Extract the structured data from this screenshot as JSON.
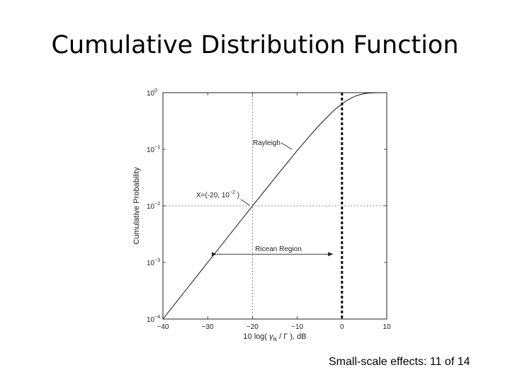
{
  "slide": {
    "title": "Cumulative Distribution Function",
    "footer": "Small-scale effects: 11 of 14"
  },
  "chart_data": {
    "type": "line",
    "title": "",
    "xlabel_prefix": "10 log( ",
    "xlabel_var": "γ",
    "xlabel_sub": "fk",
    "xlabel_suffix": " / Γ ), dB",
    "ylabel": "Cumulative Probability",
    "xlim": [
      -40,
      10
    ],
    "ylim_log10": [
      -4,
      0
    ],
    "y_scale": "log",
    "x_ticks": [
      "−40",
      "−30",
      "−20",
      "−10",
      "0",
      "10"
    ],
    "x_tick_values": [
      -40,
      -30,
      -20,
      -10,
      0,
      10
    ],
    "y_ticks": [
      {
        "base": "10",
        "exp": "0",
        "value": 1
      },
      {
        "base": "10",
        "exp": "−1",
        "value": 0.1
      },
      {
        "base": "10",
        "exp": "−2",
        "value": 0.01
      },
      {
        "base": "10",
        "exp": "−3",
        "value": 0.001
      },
      {
        "base": "10",
        "exp": "−4",
        "value": 0.0001
      }
    ],
    "series": [
      {
        "name": "Rayleigh",
        "x": [
          -40,
          -35,
          -30,
          -25,
          -20,
          -15,
          -10,
          -7,
          -5,
          -3,
          -2,
          -1,
          0,
          1,
          2,
          3,
          4,
          5,
          6,
          7,
          8,
          10
        ],
        "y": [
          0.0001,
          0.000316,
          0.001,
          0.00316,
          0.00995,
          0.031,
          0.095,
          0.18,
          0.27,
          0.39,
          0.47,
          0.55,
          0.63,
          0.72,
          0.8,
          0.87,
          0.92,
          0.96,
          0.985,
          0.995,
          1.0,
          1.0
        ]
      }
    ],
    "reference_lines": {
      "x_dotted": -20,
      "y_dotted": 0.01,
      "x_thick_dashed": 0
    },
    "annotations": {
      "rayleigh_label": "Rayleigh",
      "point_label_prefix": "X=(-20, 10",
      "point_label_exp": "−2",
      "point_label_suffix": " )",
      "region_label": "Ricean Region",
      "region_x": [
        -28,
        -2
      ],
      "region_y": 0.0014
    },
    "grid": false
  }
}
